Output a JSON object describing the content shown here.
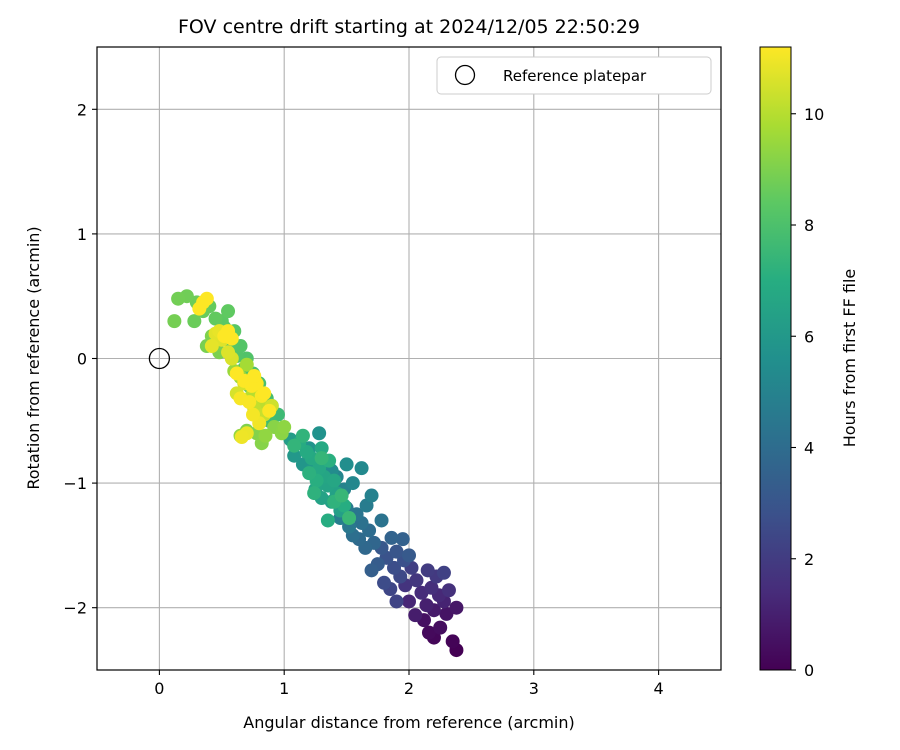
{
  "chart_data": {
    "type": "scatter",
    "title": "FOV centre drift starting at 2024/12/05 22:50:29",
    "xlabel": "Angular distance from reference (arcmin)",
    "ylabel": "Rotation from reference (arcmin)",
    "xlim": [
      -0.5,
      4.5
    ],
    "ylim": [
      -2.5,
      2.5
    ],
    "xticks": [
      0,
      1,
      2,
      3,
      4
    ],
    "yticks": [
      -2,
      -1,
      0,
      1,
      2
    ],
    "xtick_labels": [
      "0",
      "1",
      "2",
      "3",
      "4"
    ],
    "ytick_labels": [
      "−2",
      "−1",
      "0",
      "1",
      "2"
    ],
    "grid": true,
    "legend": {
      "position": "top-right",
      "entries": [
        {
          "label": "Reference platepar",
          "marker": "open-circle"
        }
      ]
    },
    "reference_point": {
      "x": 0,
      "y": 0
    },
    "colorbar": {
      "label": "Hours from first FF file",
      "colormap": "viridis",
      "range": [
        0,
        11.2
      ],
      "ticks": [
        0,
        2,
        4,
        6,
        8,
        10
      ],
      "tick_labels": [
        "0",
        "2",
        "4",
        "6",
        "8",
        "10"
      ]
    },
    "series": [
      {
        "points": [
          [
            2.38,
            -2.34
          ],
          [
            2.35,
            -2.27
          ],
          [
            2.2,
            -2.24
          ],
          [
            2.16,
            -2.2
          ],
          [
            2.25,
            -2.16
          ],
          [
            2.12,
            -2.1
          ],
          [
            2.3,
            -2.05
          ],
          [
            2.38,
            -2.0
          ],
          [
            2.2,
            -2.02
          ],
          [
            2.05,
            -2.06
          ],
          [
            2.14,
            -1.98
          ],
          [
            2.28,
            -1.95
          ],
          [
            2.0,
            -1.95
          ],
          [
            2.24,
            -1.9
          ],
          [
            2.1,
            -1.88
          ],
          [
            2.18,
            -1.84
          ],
          [
            2.32,
            -1.86
          ],
          [
            1.97,
            -1.82
          ],
          [
            2.06,
            -1.78
          ],
          [
            2.22,
            -1.75
          ],
          [
            2.15,
            -1.7
          ],
          [
            2.02,
            -1.68
          ],
          [
            2.28,
            -1.72
          ]
        ],
        "hours": [
          0.0,
          0.1,
          0.2,
          0.3,
          0.4,
          0.5,
          0.6,
          0.7,
          0.8,
          0.9,
          1.0,
          1.1,
          1.2,
          1.3,
          1.4,
          1.5,
          1.6,
          1.7,
          1.8,
          1.9,
          2.0,
          2.1,
          2.2
        ]
      },
      {
        "points": [
          [
            1.9,
            -1.95
          ],
          [
            1.85,
            -1.85
          ],
          [
            1.93,
            -1.75
          ],
          [
            1.8,
            -1.8
          ],
          [
            1.88,
            -1.68
          ],
          [
            1.96,
            -1.62
          ],
          [
            1.82,
            -1.6
          ],
          [
            1.9,
            -1.55
          ],
          [
            1.78,
            -1.52
          ],
          [
            2.0,
            -1.58
          ],
          [
            1.75,
            -1.65
          ],
          [
            1.7,
            -1.7
          ],
          [
            1.95,
            -1.45
          ],
          [
            1.86,
            -1.44
          ],
          [
            1.72,
            -1.48
          ]
        ],
        "hours": [
          2.3,
          2.4,
          2.5,
          2.6,
          2.7,
          2.8,
          2.9,
          3.0,
          3.1,
          3.2,
          3.3,
          3.4,
          3.5,
          3.6,
          3.7
        ]
      },
      {
        "points": [
          [
            1.65,
            -1.52
          ],
          [
            1.6,
            -1.45
          ],
          [
            1.68,
            -1.38
          ],
          [
            1.55,
            -1.42
          ],
          [
            1.62,
            -1.32
          ],
          [
            1.78,
            -1.3
          ],
          [
            1.58,
            -1.25
          ],
          [
            1.52,
            -1.35
          ],
          [
            1.5,
            -1.2
          ],
          [
            1.66,
            -1.18
          ],
          [
            1.45,
            -1.28
          ],
          [
            1.7,
            -1.1
          ],
          [
            1.48,
            -1.05
          ],
          [
            1.42,
            -0.95
          ],
          [
            1.55,
            -1.0
          ],
          [
            1.62,
            -0.88
          ],
          [
            1.38,
            -0.9
          ],
          [
            1.5,
            -0.85
          ],
          [
            1.33,
            -0.82
          ],
          [
            1.28,
            -0.6
          ],
          [
            1.2,
            -0.72
          ],
          [
            1.15,
            -0.85
          ],
          [
            1.08,
            -0.78
          ],
          [
            1.22,
            -0.9
          ],
          [
            1.05,
            -0.65
          ]
        ],
        "hours": [
          3.8,
          3.9,
          4.0,
          4.1,
          4.2,
          4.3,
          4.4,
          4.5,
          4.6,
          4.7,
          4.8,
          4.9,
          5.0,
          5.1,
          5.2,
          5.3,
          5.4,
          5.5,
          5.6,
          5.7,
          5.8,
          5.9,
          6.0,
          6.1,
          6.2
        ]
      },
      {
        "points": [
          [
            1.45,
            -1.22
          ],
          [
            1.38,
            -1.15
          ],
          [
            1.42,
            -1.08
          ],
          [
            1.3,
            -1.12
          ],
          [
            1.35,
            -1.02
          ],
          [
            1.25,
            -1.05
          ],
          [
            1.32,
            -0.95
          ],
          [
            1.4,
            -0.98
          ],
          [
            1.28,
            -0.88
          ],
          [
            1.22,
            -0.8
          ],
          [
            1.3,
            -0.72
          ],
          [
            1.18,
            -0.75
          ],
          [
            1.12,
            -0.68
          ],
          [
            1.35,
            -1.3
          ],
          [
            1.48,
            -1.18
          ],
          [
            1.26,
            -0.98
          ],
          [
            1.36,
            -0.82
          ],
          [
            1.2,
            -0.92
          ],
          [
            1.24,
            -1.08
          ],
          [
            1.4,
            -1.15
          ],
          [
            1.15,
            -0.62
          ],
          [
            1.08,
            -0.7
          ],
          [
            1.3,
            -0.8
          ],
          [
            1.46,
            -1.1
          ],
          [
            1.52,
            -1.28
          ]
        ],
        "hours": [
          6.3,
          6.35,
          6.4,
          6.45,
          6.5,
          6.55,
          6.6,
          6.65,
          6.7,
          6.75,
          6.8,
          6.85,
          6.9,
          6.95,
          7.0,
          7.05,
          7.1,
          7.15,
          7.2,
          7.25,
          7.3,
          7.35,
          7.4,
          7.45,
          7.5
        ]
      },
      {
        "points": [
          [
            0.95,
            -0.45
          ],
          [
            0.88,
            -0.5
          ],
          [
            0.9,
            -0.38
          ],
          [
            0.82,
            -0.42
          ],
          [
            0.86,
            -0.32
          ],
          [
            0.78,
            -0.3
          ],
          [
            0.8,
            -0.2
          ],
          [
            0.72,
            -0.22
          ],
          [
            0.75,
            -0.12
          ],
          [
            0.68,
            -0.08
          ],
          [
            0.7,
            0.0
          ],
          [
            0.62,
            0.02
          ],
          [
            0.65,
            0.1
          ],
          [
            0.58,
            0.12
          ],
          [
            0.6,
            0.22
          ],
          [
            0.52,
            0.25
          ],
          [
            0.5,
            0.3
          ],
          [
            0.55,
            0.38
          ],
          [
            0.45,
            0.32
          ],
          [
            0.4,
            0.42
          ],
          [
            0.35,
            0.38
          ],
          [
            0.28,
            0.3
          ],
          [
            0.3,
            0.45
          ],
          [
            0.22,
            0.5
          ],
          [
            0.15,
            0.48
          ],
          [
            0.12,
            0.3
          ],
          [
            0.38,
            0.1
          ],
          [
            0.48,
            0.05
          ],
          [
            0.42,
            0.18
          ],
          [
            0.7,
            -0.58
          ],
          [
            0.78,
            -0.6
          ],
          [
            0.82,
            -0.68
          ],
          [
            0.92,
            -0.55
          ],
          [
            0.98,
            -0.6
          ],
          [
            1.0,
            -0.55
          ],
          [
            0.85,
            -0.62
          ],
          [
            0.65,
            -0.62
          ]
        ],
        "hours": [
          7.6,
          7.65,
          7.7,
          7.75,
          7.8,
          7.85,
          7.9,
          7.95,
          8.0,
          8.05,
          8.1,
          8.15,
          8.2,
          8.25,
          8.3,
          8.35,
          8.4,
          8.45,
          8.5,
          8.55,
          8.6,
          8.65,
          8.7,
          8.75,
          8.8,
          8.85,
          8.9,
          8.95,
          9.0,
          9.05,
          9.1,
          9.15,
          9.2,
          9.25,
          9.3,
          9.35,
          9.4
        ]
      },
      {
        "points": [
          [
            0.6,
            -0.1
          ],
          [
            0.65,
            -0.15
          ],
          [
            0.7,
            -0.05
          ],
          [
            0.72,
            -0.18
          ],
          [
            0.78,
            -0.25
          ],
          [
            0.74,
            -0.3
          ],
          [
            0.8,
            -0.35
          ],
          [
            0.76,
            -0.4
          ],
          [
            0.84,
            -0.45
          ],
          [
            0.9,
            -0.38
          ],
          [
            0.68,
            -0.2
          ],
          [
            0.62,
            -0.28
          ],
          [
            0.58,
            0.0
          ],
          [
            0.55,
            0.05
          ],
          [
            0.5,
            0.15
          ],
          [
            0.45,
            0.2
          ],
          [
            0.42,
            0.1
          ],
          [
            0.48,
            0.22
          ],
          [
            0.7,
            -0.6
          ],
          [
            0.66,
            -0.63
          ],
          [
            0.8,
            -0.52
          ],
          [
            0.75,
            -0.45
          ],
          [
            0.65,
            -0.32
          ],
          [
            0.72,
            -0.35
          ],
          [
            0.82,
            -0.3
          ],
          [
            0.88,
            -0.42
          ]
        ],
        "hours": [
          9.5,
          9.6,
          9.7,
          9.8,
          9.9,
          10.0,
          10.1,
          10.2,
          10.3,
          10.4,
          10.5,
          10.55,
          10.6,
          10.65,
          10.7,
          10.75,
          10.8,
          10.85,
          10.9,
          10.95,
          11.0,
          11.05,
          11.1,
          11.12,
          11.15,
          11.18
        ]
      },
      {
        "points": [
          [
            0.35,
            0.45
          ],
          [
            0.32,
            0.4
          ],
          [
            0.38,
            0.48
          ],
          [
            0.55,
            0.22
          ],
          [
            0.58,
            0.16
          ],
          [
            0.52,
            0.18
          ],
          [
            0.62,
            -0.12
          ],
          [
            0.68,
            -0.18
          ],
          [
            0.74,
            -0.22
          ],
          [
            0.78,
            -0.2
          ],
          [
            0.84,
            -0.28
          ],
          [
            0.76,
            -0.14
          ]
        ],
        "hours": [
          11.19,
          11.2,
          11.2,
          11.2,
          11.2,
          11.2,
          11.2,
          11.2,
          11.2,
          11.2,
          11.2,
          11.2
        ]
      }
    ]
  }
}
